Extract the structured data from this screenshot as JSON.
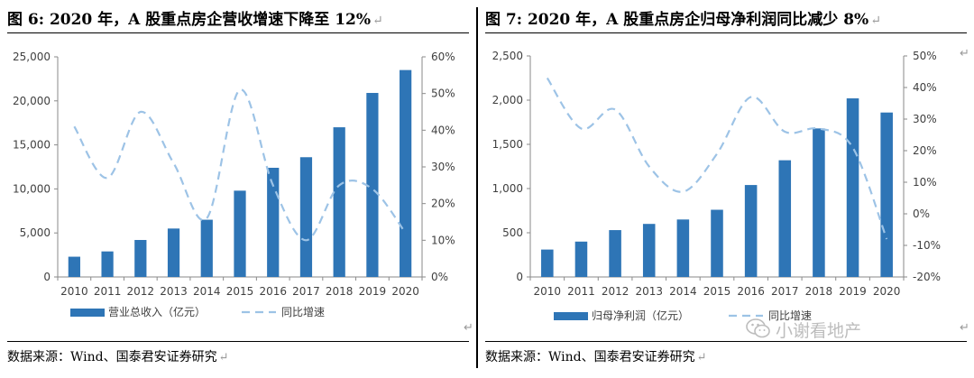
{
  "figures": [
    {
      "title": "图 6: 2020 年，A 股重点房企营收增速下降至 12%",
      "source": "数据来源：Wind、国泰君安证券研究"
    },
    {
      "title": "图 7: 2020 年，A 股重点房企归母净利润同比减少 8%",
      "source": "数据来源：Wind、国泰君安证券研究"
    }
  ],
  "watermark": "小谢看地产",
  "chart_data": [
    {
      "type": "bar",
      "categories": [
        "2010",
        "2011",
        "2012",
        "2013",
        "2014",
        "2015",
        "2016",
        "2017",
        "2018",
        "2019",
        "2020"
      ],
      "series": [
        {
          "name": "营业总收入（亿元）",
          "kind": "bar",
          "axis": "left",
          "values": [
            2300,
            2900,
            4200,
            5500,
            6500,
            9800,
            12400,
            13600,
            17000,
            20900,
            23500
          ]
        },
        {
          "name": "同比增速",
          "kind": "dashed-line",
          "axis": "right",
          "values": [
            41,
            27,
            45,
            31,
            16,
            51,
            25,
            10,
            25,
            24,
            12
          ]
        }
      ],
      "y_left": {
        "min": 0,
        "max": 25000,
        "ticks": [
          "0",
          "5,000",
          "10,000",
          "15,000",
          "20,000",
          "25,000"
        ]
      },
      "y_right": {
        "min": 0,
        "max": 60,
        "ticks": [
          "0%",
          "10%",
          "20%",
          "30%",
          "40%",
          "50%",
          "60%"
        ]
      },
      "colors": {
        "bar": "#2e75b6",
        "line": "#9dc3e6"
      },
      "legend_position": "bottom"
    },
    {
      "type": "bar",
      "categories": [
        "2010",
        "2011",
        "2012",
        "2013",
        "2014",
        "2015",
        "2016",
        "2017",
        "2018",
        "2019",
        "2020"
      ],
      "series": [
        {
          "name": "归母净利润（亿元）",
          "kind": "bar",
          "axis": "left",
          "values": [
            310,
            400,
            530,
            600,
            650,
            760,
            1040,
            1320,
            1680,
            2020,
            1860
          ]
        },
        {
          "name": "同比增速",
          "kind": "dashed-line",
          "axis": "right",
          "values": [
            43,
            27,
            33,
            15,
            7,
            19,
            37,
            26,
            27,
            21,
            -8
          ]
        }
      ],
      "y_left": {
        "min": 0,
        "max": 2500,
        "ticks": [
          "0",
          "500",
          "1,000",
          "1,500",
          "2,000",
          "2,500"
        ]
      },
      "y_right": {
        "min": -20,
        "max": 50,
        "ticks": [
          "-20%",
          "-10%",
          "0%",
          "10%",
          "20%",
          "30%",
          "40%",
          "50%"
        ]
      },
      "colors": {
        "bar": "#2e75b6",
        "line": "#9dc3e6"
      },
      "legend_position": "bottom"
    }
  ]
}
